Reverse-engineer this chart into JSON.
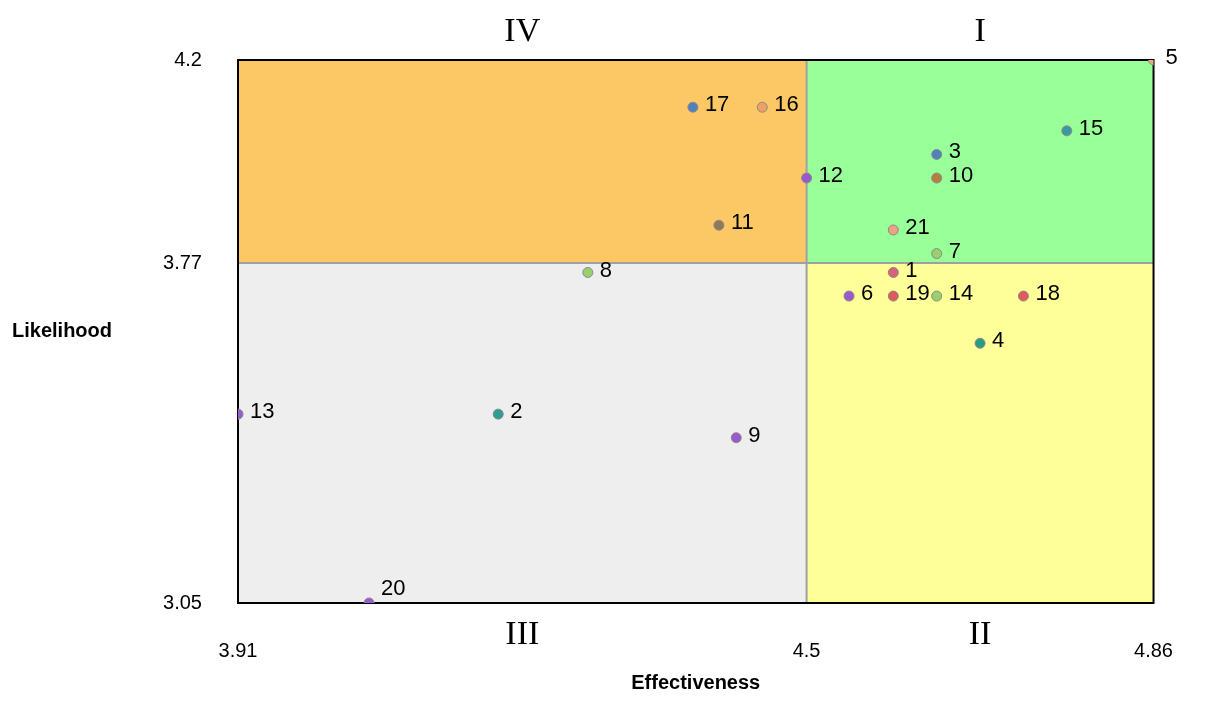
{
  "chart_data": {
    "type": "scatter",
    "xlabel": "Effectiveness",
    "ylabel": "Likelihood",
    "x": [
      4.59,
      4.18,
      4.635,
      4.68,
      4.86,
      4.544,
      4.635,
      4.273,
      4.427,
      4.635,
      4.409,
      4.5,
      3.91,
      4.635,
      4.77,
      4.454,
      4.382,
      4.725,
      4.59,
      4.046,
      4.59
    ],
    "values": [
      3.75,
      3.45,
      4.0,
      3.6,
      4.2,
      3.7,
      3.79,
      3.75,
      3.4,
      3.95,
      3.85,
      3.95,
      3.45,
      3.7,
      4.05,
      4.1,
      4.1,
      3.7,
      3.7,
      3.05,
      3.84
    ],
    "colors": [
      "#d9627a",
      "#2e9e8e",
      "#4f81bd",
      "#2a9d7f",
      "#f4a582",
      "#9b59d0",
      "#9bcf6e",
      "#9bcf6e",
      "#9b59d0",
      "#b5803f",
      "#8c7a5a",
      "#9b59d0",
      "#9b59d0",
      "#9bcf6e",
      "#3a9aa0",
      "#f0a060",
      "#4f81bd",
      "#e05a5a",
      "#e05a5a",
      "#9b59d0",
      "#f0a080"
    ],
    "marker": "circle",
    "legend": false,
    "xlim": [
      3.91,
      4.86
    ],
    "xticks": [
      3.91,
      4.5,
      4.86
    ],
    "ylim": [
      3.05,
      4.2
    ],
    "yticks": [
      3.05,
      3.77,
      4.2
    ],
    "ref_lines": [
      {
        "axis": "x",
        "value": 4.5,
        "color": "#a0a0a0"
      },
      {
        "axis": "y",
        "value": 3.77,
        "color": "#a0a0a0"
      }
    ],
    "annotations": [
      "I",
      "II",
      "III",
      "IV",
      {
        "text": "1",
        "x": 4.59,
        "y": 3.75
      },
      {
        "text": "2",
        "x": 4.18,
        "y": 3.45
      },
      {
        "text": "3",
        "x": 4.635,
        "y": 4.0
      },
      {
        "text": "4",
        "x": 4.68,
        "y": 3.6
      },
      {
        "text": "5",
        "x": 4.86,
        "y": 4.2
      },
      {
        "text": "6",
        "x": 4.544,
        "y": 3.7
      },
      {
        "text": "7",
        "x": 4.635,
        "y": 3.79
      },
      {
        "text": "8",
        "x": 4.273,
        "y": 3.75
      },
      {
        "text": "9",
        "x": 4.427,
        "y": 3.4
      },
      {
        "text": "10",
        "x": 4.635,
        "y": 3.95
      },
      {
        "text": "11",
        "x": 4.409,
        "y": 3.85
      },
      {
        "text": "12",
        "x": 4.5,
        "y": 3.95
      },
      {
        "text": "13",
        "x": 3.91,
        "y": 3.45
      },
      {
        "text": "14",
        "x": 4.635,
        "y": 3.7
      },
      {
        "text": "15",
        "x": 4.77,
        "y": 4.05
      },
      {
        "text": "16",
        "x": 4.454,
        "y": 4.1
      },
      {
        "text": "17",
        "x": 4.382,
        "y": 4.1
      },
      {
        "text": "18",
        "x": 4.725,
        "y": 3.7
      },
      {
        "text": "19",
        "x": 4.59,
        "y": 3.7
      },
      {
        "text": "20",
        "x": 4.046,
        "y": 3.05
      },
      {
        "text": "21",
        "x": 4.59,
        "y": 3.84
      }
    ]
  }
}
